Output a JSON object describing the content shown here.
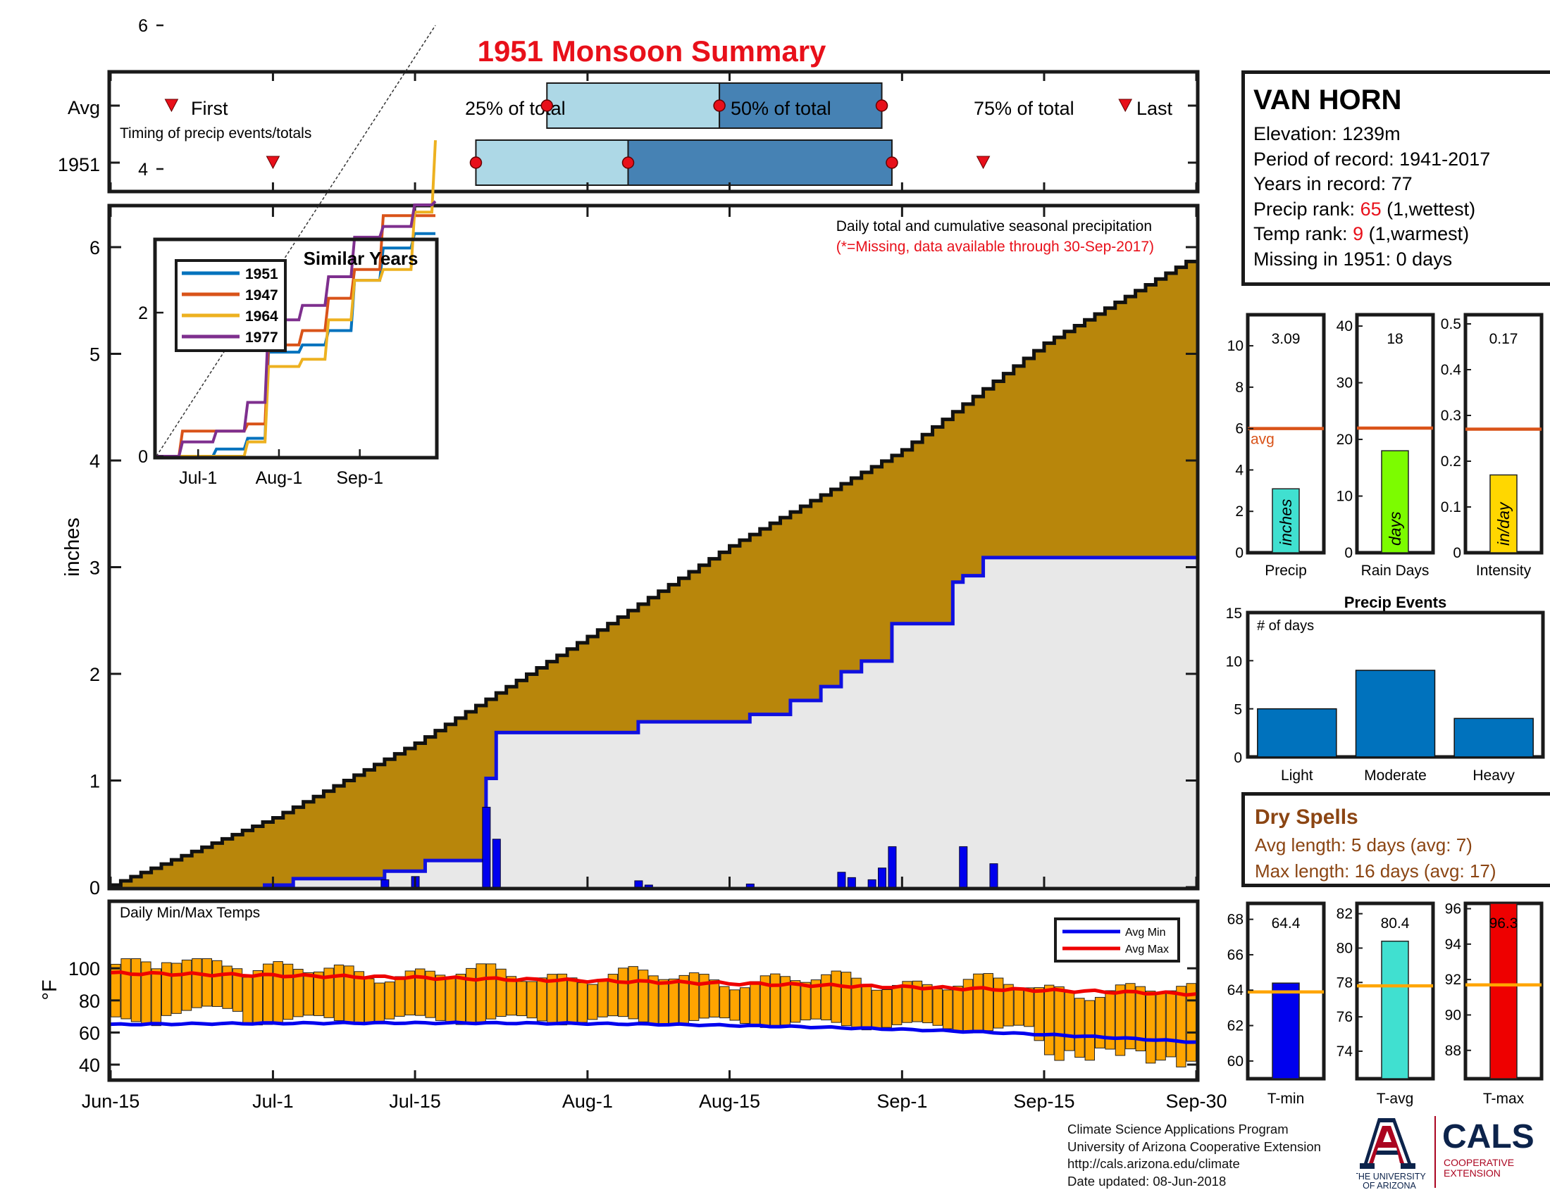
{
  "title": "1951 Monsoon Summary",
  "timing": {
    "row_avg_label": "Avg",
    "row_year_label": "1951",
    "first_label": "First",
    "last_label": "Last",
    "p25_label": "25% of total",
    "p50_label": "50% of total",
    "p75_label": "75% of total",
    "caption": "Timing of precip events/totals",
    "avg": {
      "first": "Jun-21",
      "p25": "Jul-28",
      "p50": "Aug-14",
      "p75": "Aug-30",
      "last": "Sep-23"
    },
    "year": {
      "first": "Jul-1",
      "p25": "Jul-21",
      "p50": "Aug-5",
      "p75": "Aug-31",
      "last": "Sep-9"
    },
    "colors": {
      "light": "#add8e6",
      "dark": "#4682b4",
      "marker": "#e8101a"
    }
  },
  "main": {
    "ylabel": "inches",
    "note1": "Daily total and cumulative seasonal precipitation",
    "note2": "(*=Missing, data available through 30-Sep-2017)",
    "x_ticks": [
      "Jun-15",
      "Jul-1",
      "Jul-15",
      "Aug-1",
      "Aug-15",
      "Sep-1",
      "Sep-15",
      "Sep-30"
    ],
    "y_ticks": [
      "0",
      "1",
      "2",
      "3",
      "4",
      "5",
      "6"
    ],
    "colors": {
      "avg_fill": "#b8860b",
      "year_fill": "#e8e8e8",
      "year_line": "#1010e0",
      "daily_bar": "#0000ee"
    }
  },
  "inset": {
    "title": "Similar Years",
    "x_ticks": [
      "Jul-1",
      "Aug-1",
      "Sep-1"
    ],
    "y_ticks": [
      "0",
      "2",
      "4",
      "6"
    ],
    "legend": [
      "1951",
      "1947",
      "1964",
      "1977"
    ],
    "colors": [
      "#0072bd",
      "#d95319",
      "#edb120",
      "#7e2f8e"
    ]
  },
  "temps": {
    "label": "Daily Min/Max Temps",
    "ylabel": "°F",
    "y_ticks": [
      "40",
      "60",
      "80",
      "100"
    ],
    "legend_min": "Avg Min",
    "legend_max": "Avg Max",
    "colors": {
      "bar": "#ffa500",
      "avg_min": "#0000ee",
      "avg_max": "#ee0000"
    }
  },
  "side_bars": [
    {
      "name": "Precip",
      "value_label": "3.09",
      "unit": "inches",
      "value": 3.09,
      "avg": 6.0,
      "ymax": 11.5,
      "ticks": [
        "0",
        "2",
        "4",
        "6",
        "8",
        "10"
      ],
      "tick_values": [
        0,
        2,
        4,
        6,
        8,
        10
      ],
      "avg_label": "avg",
      "color": "#40e0d0"
    },
    {
      "name": "Rain Days",
      "value_label": "18",
      "unit": "days",
      "value": 18,
      "avg": 22,
      "ymax": 42,
      "ticks": [
        "0",
        "10",
        "20",
        "30",
        "40"
      ],
      "tick_values": [
        0,
        10,
        20,
        30,
        40
      ],
      "color": "#7cfc00"
    },
    {
      "name": "Intensity",
      "value_label": "0.17",
      "unit": "in/day",
      "value": 0.17,
      "avg": 0.27,
      "ymax": 0.52,
      "ticks": [
        "0",
        "0.1",
        "0.2",
        "0.3",
        "0.4",
        "0.5"
      ],
      "tick_values": [
        0,
        0.1,
        0.2,
        0.3,
        0.4,
        0.5
      ],
      "color": "#ffd700"
    }
  ],
  "events": {
    "title": "Precip Events",
    "ylabel": "# of days",
    "categories": [
      "Light",
      "Moderate",
      "Heavy"
    ],
    "values": [
      5,
      9,
      4
    ],
    "y_ticks": [
      "0",
      "5",
      "10",
      "15"
    ],
    "color": "#0072bd"
  },
  "temp_bars": [
    {
      "name": "T-min",
      "value_label": "64.4",
      "value": 64.4,
      "avg": 63.9,
      "ymin": 59,
      "ymax": 68.9,
      "ticks": [
        "60",
        "62",
        "64",
        "66",
        "68"
      ],
      "tick_values": [
        60,
        62,
        64,
        66,
        68
      ],
      "color": "#0000ee"
    },
    {
      "name": "T-avg",
      "value_label": "80.4",
      "value": 80.4,
      "avg": 77.8,
      "ymin": 72.4,
      "ymax": 82.6,
      "ticks": [
        "74",
        "76",
        "78",
        "80",
        "82"
      ],
      "tick_values": [
        74,
        76,
        78,
        80,
        82
      ],
      "color": "#40e0d0"
    },
    {
      "name": "T-max",
      "value_label": "96.3",
      "value": 96.3,
      "avg": 91.7,
      "ymin": 86.4,
      "ymax": 96.3,
      "ticks": [
        "88",
        "90",
        "92",
        "94",
        "96"
      ],
      "tick_values": [
        88,
        90,
        92,
        94,
        96
      ],
      "color": "#ee0000"
    }
  ],
  "info": {
    "station": "VAN HORN",
    "elevation": "Elevation: 1239m",
    "period": "Period of record: 1941-2017",
    "years": "Years in record: 77",
    "precip_rank_prefix": "Precip rank: ",
    "precip_rank": "65",
    "precip_rank_suffix": " (1,wettest)",
    "temp_rank_prefix": "Temp rank: ",
    "temp_rank": "9",
    "temp_rank_suffix": " (1,warmest)",
    "missing": "Missing in 1951: 0 days"
  },
  "dry_spells": {
    "title": "Dry Spells",
    "avg_length": "Avg length: 5 days (avg: 7)",
    "max_length": "Max length: 16 days (avg: 17)"
  },
  "footer": {
    "line1": "Climate Science Applications Program",
    "line2": "University of Arizona Cooperative Extension",
    "line3": "http://cals.arizona.edu/climate",
    "line4": " Date updated: 08-Jun-2018"
  },
  "logo": {
    "ua_line1": "THE UNIVERSITY",
    "ua_line2": "OF ARIZONA",
    "cals": "CALS",
    "cals_line1": "COOPERATIVE",
    "cals_line2": "EXTENSION",
    "colors": {
      "navy": "#0c234b",
      "red": "#ab0520"
    }
  },
  "chart_data": [
    {
      "type": "area",
      "title": "",
      "ylabel": "inches",
      "ylim": [
        0,
        6.5
      ],
      "series": [
        {
          "name": "avg cumulative",
          "x": [
            "Jun-15",
            "Jul-1",
            "Jul-15",
            "Aug-1",
            "Aug-15",
            "Sep-1",
            "Sep-15",
            "Sep-30"
          ],
          "values": [
            0.02,
            0.65,
            1.35,
            2.35,
            3.2,
            4.1,
            5.1,
            5.92
          ]
        },
        {
          "name": "1951 cumulative",
          "x": [
            "Jun-30",
            "Jul-3",
            "Jul-12",
            "Jul-16",
            "Jul-22",
            "Jul-23",
            "Aug-6",
            "Aug-17",
            "Aug-21",
            "Aug-24",
            "Aug-26",
            "Aug-28",
            "Aug-31",
            "Sep-6",
            "Sep-7",
            "Sep-9",
            "Sep-30"
          ],
          "values": [
            0.02,
            0.08,
            0.15,
            0.25,
            1.02,
            1.45,
            1.55,
            1.62,
            1.75,
            1.88,
            2.02,
            2.12,
            2.47,
            2.86,
            2.92,
            3.09,
            3.09
          ]
        },
        {
          "name": "1951 daily",
          "x": [
            "Jul-12",
            "Jul-15",
            "Jul-22",
            "Jul-23",
            "Aug-6",
            "Aug-7",
            "Aug-17",
            "Aug-26",
            "Aug-27",
            "Aug-29",
            "Aug-30",
            "Aug-31",
            "Sep-7",
            "Sep-10"
          ],
          "values": [
            0.07,
            0.1,
            0.75,
            0.45,
            0.06,
            0.02,
            0.03,
            0.14,
            0.09,
            0.07,
            0.18,
            0.38,
            0.38,
            0.22
          ]
        }
      ]
    },
    {
      "type": "line",
      "title": "Similar Years",
      "x_ticks": [
        "Jul-1",
        "Aug-1",
        "Sep-1"
      ],
      "ylim": [
        0,
        6
      ],
      "series": [
        {
          "name": "1951",
          "values": [
            0,
            0,
            0.1,
            0.25,
            1.45,
            1.55,
            1.75,
            2.45,
            2.9,
            3.1,
            3.1
          ]
        },
        {
          "name": "1947",
          "values": [
            0,
            0.35,
            0.35,
            0.45,
            1.55,
            1.75,
            2.2,
            2.6,
            3.35,
            3.35,
            3.35
          ]
        },
        {
          "name": "1964",
          "values": [
            0,
            0,
            0,
            0.2,
            1.25,
            1.35,
            1.9,
            2.45,
            2.6,
            3.4,
            4.4
          ]
        },
        {
          "name": "1977",
          "values": [
            0,
            0.2,
            0.35,
            0.75,
            1.9,
            2.1,
            2.5,
            3.05,
            3.2,
            3.5,
            3.55
          ]
        }
      ]
    },
    {
      "type": "bar",
      "title": "Daily Min/Max Temps",
      "ylabel": "°F",
      "ylim": [
        35,
        109
      ],
      "series": [
        {
          "name": "Avg Min",
          "x": [
            "Jun-15",
            "Jul-15",
            "Aug-15",
            "Sep-15",
            "Sep-30"
          ],
          "values": [
            65,
            66.5,
            66,
            61,
            54
          ]
        },
        {
          "name": "Avg Max",
          "x": [
            "Jun-15",
            "Jul-15",
            "Aug-15",
            "Sep-15",
            "Sep-30"
          ],
          "values": [
            97,
            95,
            93,
            89,
            84
          ]
        }
      ]
    },
    {
      "type": "bar",
      "title": "Precip Events",
      "categories": [
        "Light",
        "Moderate",
        "Heavy"
      ],
      "values": [
        5,
        9,
        4
      ],
      "ylabel": "# of days",
      "ylim": [
        0,
        15
      ]
    }
  ]
}
